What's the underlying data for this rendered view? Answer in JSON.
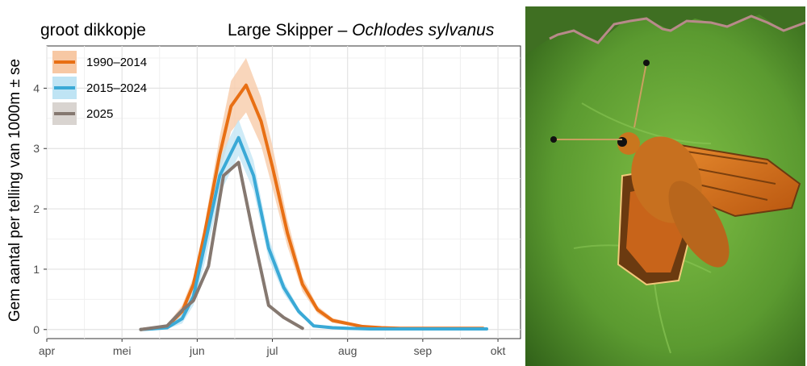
{
  "chart_data": {
    "type": "line",
    "title": "Large Skipper – Ochlodes sylvanus",
    "title_plain": "Large Skipper – ",
    "title_italic": "Ochlodes sylvanus",
    "subtitle": "groot dikkopje",
    "xlabel": "",
    "ylabel": "Gem aantal per telling van 1000m ± se",
    "x_ticks": [
      "apr",
      "mei",
      "jun",
      "jul",
      "aug",
      "sep",
      "okt"
    ],
    "y_ticks": [
      "0",
      "1",
      "2",
      "3",
      "4"
    ],
    "xlim": [
      0,
      6.3
    ],
    "ylim": [
      -0.15,
      4.7
    ],
    "grid": true,
    "legend_position": "top-left",
    "series": [
      {
        "name": "1990–2014",
        "color": "#e86f14",
        "band_color": "#f7c8a4",
        "x": [
          1.25,
          1.4,
          1.6,
          1.8,
          1.95,
          2.1,
          2.3,
          2.45,
          2.65,
          2.85,
          3.0,
          3.2,
          3.4,
          3.6,
          3.8,
          4.0,
          4.2,
          4.45,
          4.7,
          4.95,
          5.2,
          5.5,
          5.8
        ],
        "y": [
          0.0,
          0.02,
          0.05,
          0.3,
          0.75,
          1.6,
          2.9,
          3.7,
          4.05,
          3.45,
          2.7,
          1.6,
          0.75,
          0.33,
          0.15,
          0.1,
          0.05,
          0.03,
          0.02,
          0.02,
          0.02,
          0.02,
          0.02
        ],
        "band": [
          0.0,
          0.01,
          0.03,
          0.1,
          0.12,
          0.15,
          0.3,
          0.42,
          0.45,
          0.4,
          0.35,
          0.22,
          0.12,
          0.06,
          0.04,
          0.03,
          0.02,
          0.01,
          0.01,
          0.01,
          0.01,
          0.01,
          0.01
        ]
      },
      {
        "name": "2015–2024",
        "color": "#3aa9d6",
        "band_color": "#bfe4f4",
        "x": [
          1.25,
          1.4,
          1.6,
          1.8,
          1.95,
          2.1,
          2.3,
          2.55,
          2.75,
          2.95,
          3.15,
          3.35,
          3.55,
          3.8,
          4.0,
          4.3,
          4.6,
          4.95,
          5.3,
          5.65,
          5.85
        ],
        "y": [
          0.0,
          0.01,
          0.03,
          0.18,
          0.55,
          1.4,
          2.55,
          3.18,
          2.55,
          1.35,
          0.7,
          0.3,
          0.06,
          0.03,
          0.02,
          0.01,
          0.01,
          0.01,
          0.01,
          0.01,
          0.01
        ],
        "band": [
          0.0,
          0.01,
          0.02,
          0.08,
          0.15,
          0.3,
          0.3,
          0.3,
          0.25,
          0.18,
          0.1,
          0.05,
          0.02,
          0.01,
          0.01,
          0.01,
          0.01,
          0.01,
          0.01,
          0.01,
          0.01
        ]
      },
      {
        "name": "2025",
        "color": "#857870",
        "band_color": "#d9d4d0",
        "x": [
          1.25,
          1.6,
          1.8,
          1.95,
          2.15,
          2.35,
          2.55,
          2.75,
          2.95,
          3.15,
          3.4
        ],
        "y": [
          0.0,
          0.06,
          0.32,
          0.48,
          1.05,
          2.55,
          2.77,
          1.55,
          0.4,
          0.2,
          0.02
        ],
        "band": []
      }
    ]
  },
  "photo": {
    "subject": "large-skipper-butterfly-photo",
    "background_color": "#5b9a30",
    "wing_color": "#d8731c"
  }
}
